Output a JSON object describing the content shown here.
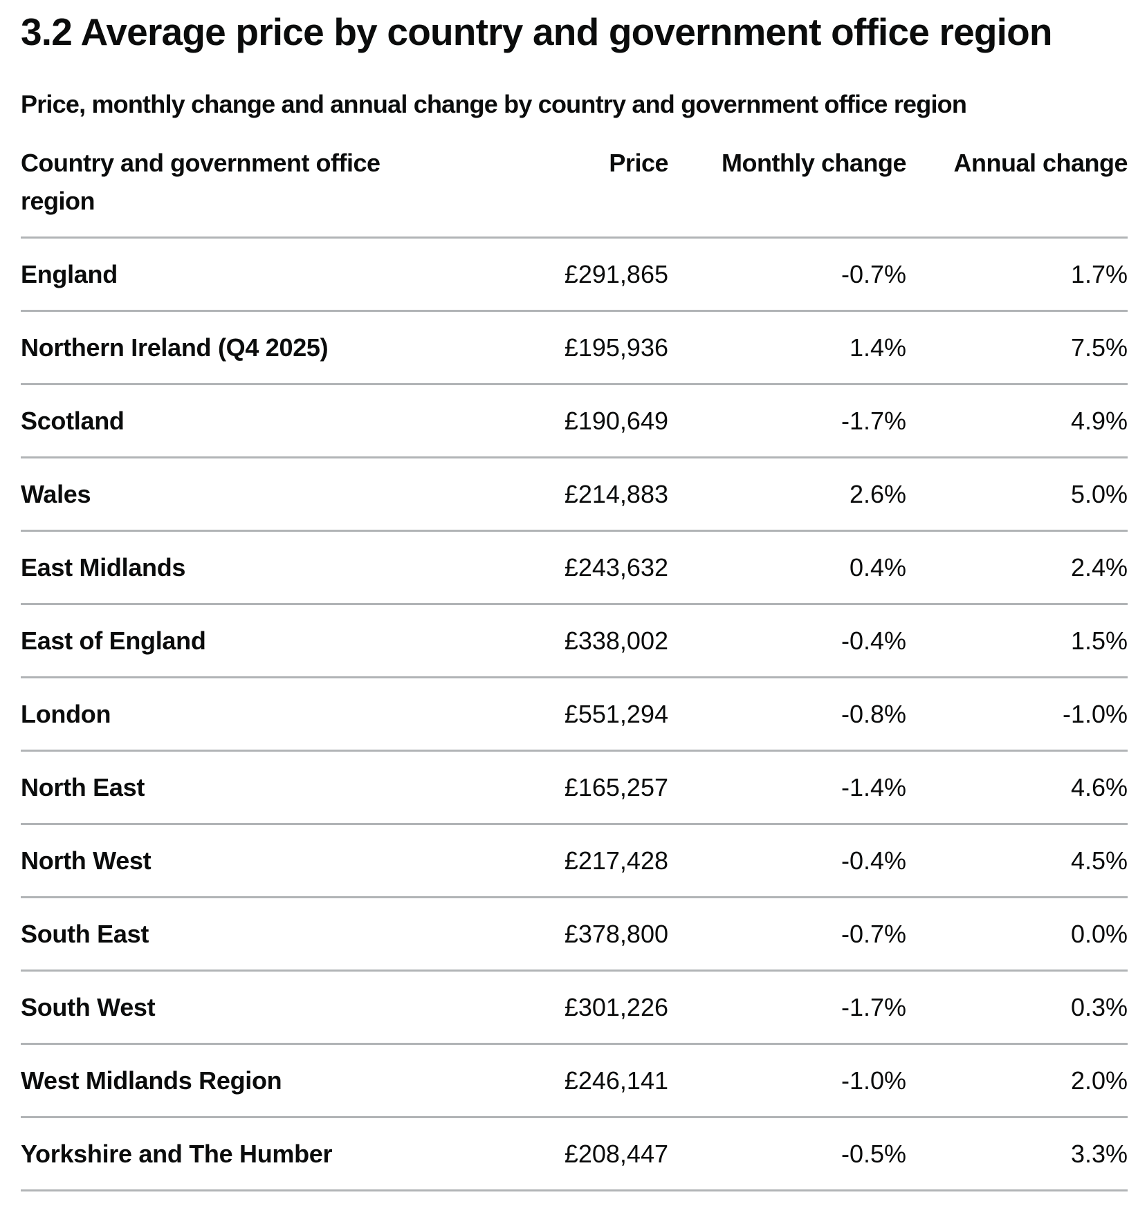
{
  "title": "3.2 Average price by country and government office region",
  "caption": "Price, monthly change and annual change by country and government office region",
  "columns": [
    "Country and government office region",
    "Price",
    "Monthly change",
    "Annual change"
  ],
  "rows": [
    {
      "region": "England",
      "price": "£291,865",
      "monthly": "-0.7%",
      "annual": "1.7%"
    },
    {
      "region": "Northern Ireland (Q4 2025)",
      "price": "£195,936",
      "monthly": "1.4%",
      "annual": "7.5%"
    },
    {
      "region": "Scotland",
      "price": "£190,649",
      "monthly": "-1.7%",
      "annual": "4.9%"
    },
    {
      "region": "Wales",
      "price": "£214,883",
      "monthly": "2.6%",
      "annual": "5.0%"
    },
    {
      "region": "East Midlands",
      "price": "£243,632",
      "monthly": "0.4%",
      "annual": "2.4%"
    },
    {
      "region": "East of England",
      "price": "£338,002",
      "monthly": "-0.4%",
      "annual": "1.5%"
    },
    {
      "region": "London",
      "price": "£551,294",
      "monthly": "-0.8%",
      "annual": "-1.0%"
    },
    {
      "region": "North East",
      "price": "£165,257",
      "monthly": "-1.4%",
      "annual": "4.6%"
    },
    {
      "region": "North West",
      "price": "£217,428",
      "monthly": "-0.4%",
      "annual": "4.5%"
    },
    {
      "region": "South East",
      "price": "£378,800",
      "monthly": "-0.7%",
      "annual": "0.0%"
    },
    {
      "region": "South West",
      "price": "£301,226",
      "monthly": "-1.7%",
      "annual": "0.3%"
    },
    {
      "region": "West Midlands Region",
      "price": "£246,141",
      "monthly": "-1.0%",
      "annual": "2.0%"
    },
    {
      "region": "Yorkshire and The Humber",
      "price": "£208,447",
      "monthly": "-0.5%",
      "annual": "3.3%"
    }
  ]
}
